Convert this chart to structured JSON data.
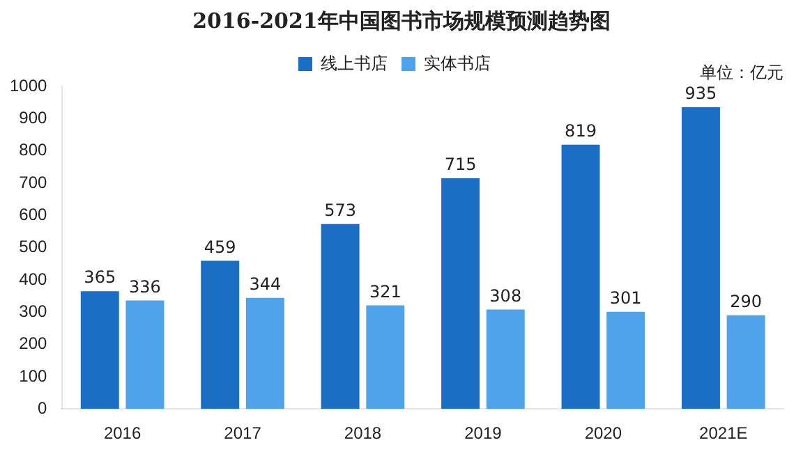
{
  "chart_data": {
    "type": "bar",
    "title": "2016-2021年中国图书市场规模预测趋势图",
    "annotations": [
      "单位：亿元"
    ],
    "categories": [
      "2016",
      "2017",
      "2018",
      "2019",
      "2020",
      "2021E"
    ],
    "series": [
      {
        "name": "线上书店",
        "color": "#1a6fc4",
        "values": [
          365,
          459,
          573,
          715,
          819,
          935
        ]
      },
      {
        "name": "实体书店",
        "color": "#4ea3ea",
        "values": [
          336,
          344,
          321,
          308,
          301,
          290
        ]
      }
    ],
    "ylim": [
      0,
      1000
    ],
    "yticks": [
      0,
      100,
      200,
      300,
      400,
      500,
      600,
      700,
      800,
      900,
      1000
    ],
    "grid": false,
    "legend": "top",
    "data_labels": true
  }
}
